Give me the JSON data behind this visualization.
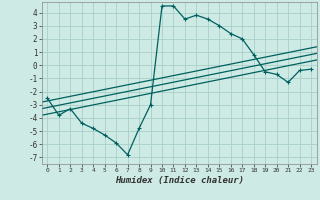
{
  "title": "",
  "xlabel": "Humidex (Indice chaleur)",
  "ylabel": "",
  "background_color": "#ceeae4",
  "grid_color": "#a8cfc8",
  "line_color": "#006060",
  "xlim": [
    -0.5,
    23.5
  ],
  "ylim": [
    -7.5,
    4.8
  ],
  "xticks": [
    0,
    1,
    2,
    3,
    4,
    5,
    6,
    7,
    8,
    9,
    10,
    11,
    12,
    13,
    14,
    15,
    16,
    17,
    18,
    19,
    20,
    21,
    22,
    23
  ],
  "yticks": [
    -7,
    -6,
    -5,
    -4,
    -3,
    -2,
    -1,
    0,
    1,
    2,
    3,
    4
  ],
  "main_series": [
    [
      0,
      -2.5
    ],
    [
      1,
      -3.8
    ],
    [
      2,
      -3.3
    ],
    [
      3,
      -4.4
    ],
    [
      4,
      -4.8
    ],
    [
      5,
      -5.3
    ],
    [
      6,
      -5.9
    ],
    [
      7,
      -6.8
    ],
    [
      8,
      -4.8
    ],
    [
      9,
      -3.0
    ],
    [
      10,
      4.5
    ],
    [
      11,
      4.5
    ],
    [
      12,
      3.5
    ],
    [
      13,
      3.8
    ],
    [
      14,
      3.5
    ],
    [
      15,
      3.0
    ],
    [
      16,
      2.4
    ],
    [
      17,
      2.0
    ],
    [
      18,
      0.8
    ],
    [
      19,
      -0.5
    ],
    [
      20,
      -0.7
    ],
    [
      21,
      -1.3
    ],
    [
      22,
      -0.4
    ],
    [
      23,
      -0.3
    ]
  ],
  "reg_line1": [
    [
      -0.5,
      -3.3
    ],
    [
      23.5,
      0.9
    ]
  ],
  "reg_line2": [
    [
      -0.5,
      -2.8
    ],
    [
      23.5,
      1.4
    ]
  ],
  "reg_line3": [
    [
      -0.5,
      -3.8
    ],
    [
      23.5,
      0.4
    ]
  ]
}
